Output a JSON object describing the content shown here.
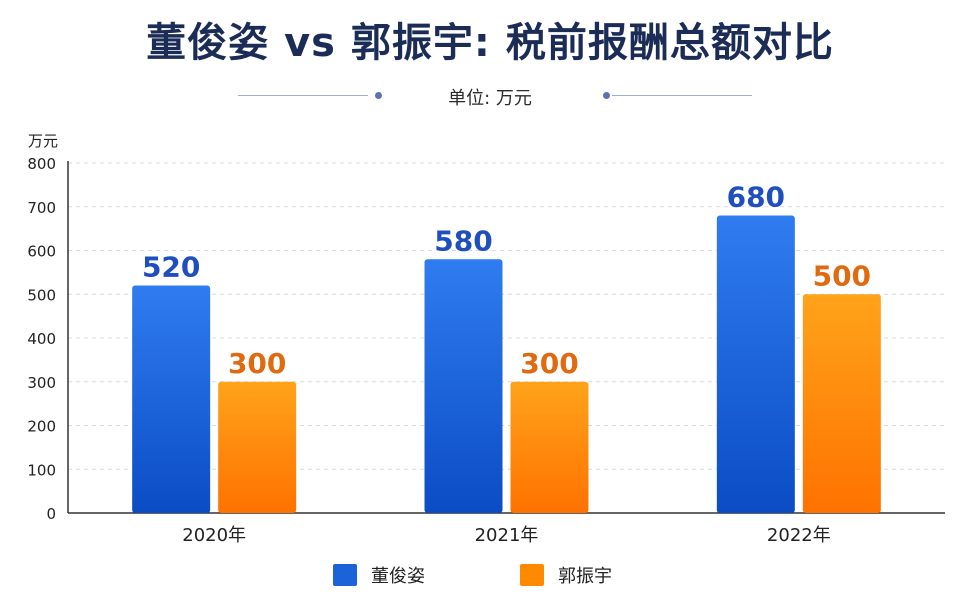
{
  "title": "董俊姿 vs 郭振宇: 税前报酬总额对比",
  "subtitle": "单位: 万元",
  "colors": {
    "series_a": "#1a63d8",
    "series_a_label": "#1f4fbf",
    "series_b": "#ff8a00",
    "series_b_label": "#e06a10",
    "grid": "#d6dbe3",
    "axis": "#333333"
  },
  "chart_data": {
    "type": "bar",
    "categories": [
      "2020年",
      "2021年",
      "2022年"
    ],
    "series": [
      {
        "name": "董俊姿",
        "values": [
          520,
          580,
          680
        ]
      },
      {
        "name": "郭振宇",
        "values": [
          300,
          300,
          500
        ]
      }
    ],
    "ylabel": "万元",
    "ylim": [
      0,
      800
    ],
    "yticks": [
      0,
      100,
      200,
      300,
      400,
      500,
      600,
      700,
      800
    ],
    "grid": true,
    "legend_position": "bottom"
  }
}
